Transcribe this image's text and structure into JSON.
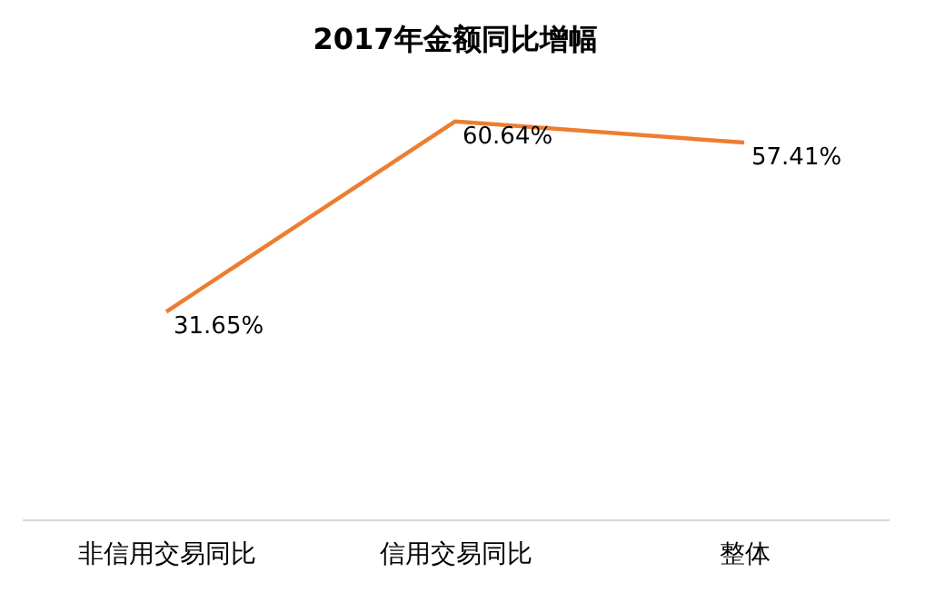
{
  "chart_data": {
    "type": "line",
    "title": "2017年金额同比增幅",
    "categories": [
      "非信用交易同比",
      "信用交易同比",
      "整体"
    ],
    "series": [
      {
        "color": "#ed7d31",
        "values": [
          31.65,
          60.64,
          57.41
        ],
        "value_labels": [
          "31.65%",
          "60.64%",
          "57.41%"
        ]
      }
    ],
    "tick_labels": "x",
    "grid": false,
    "marker": "none",
    "line_style": "solid"
  }
}
